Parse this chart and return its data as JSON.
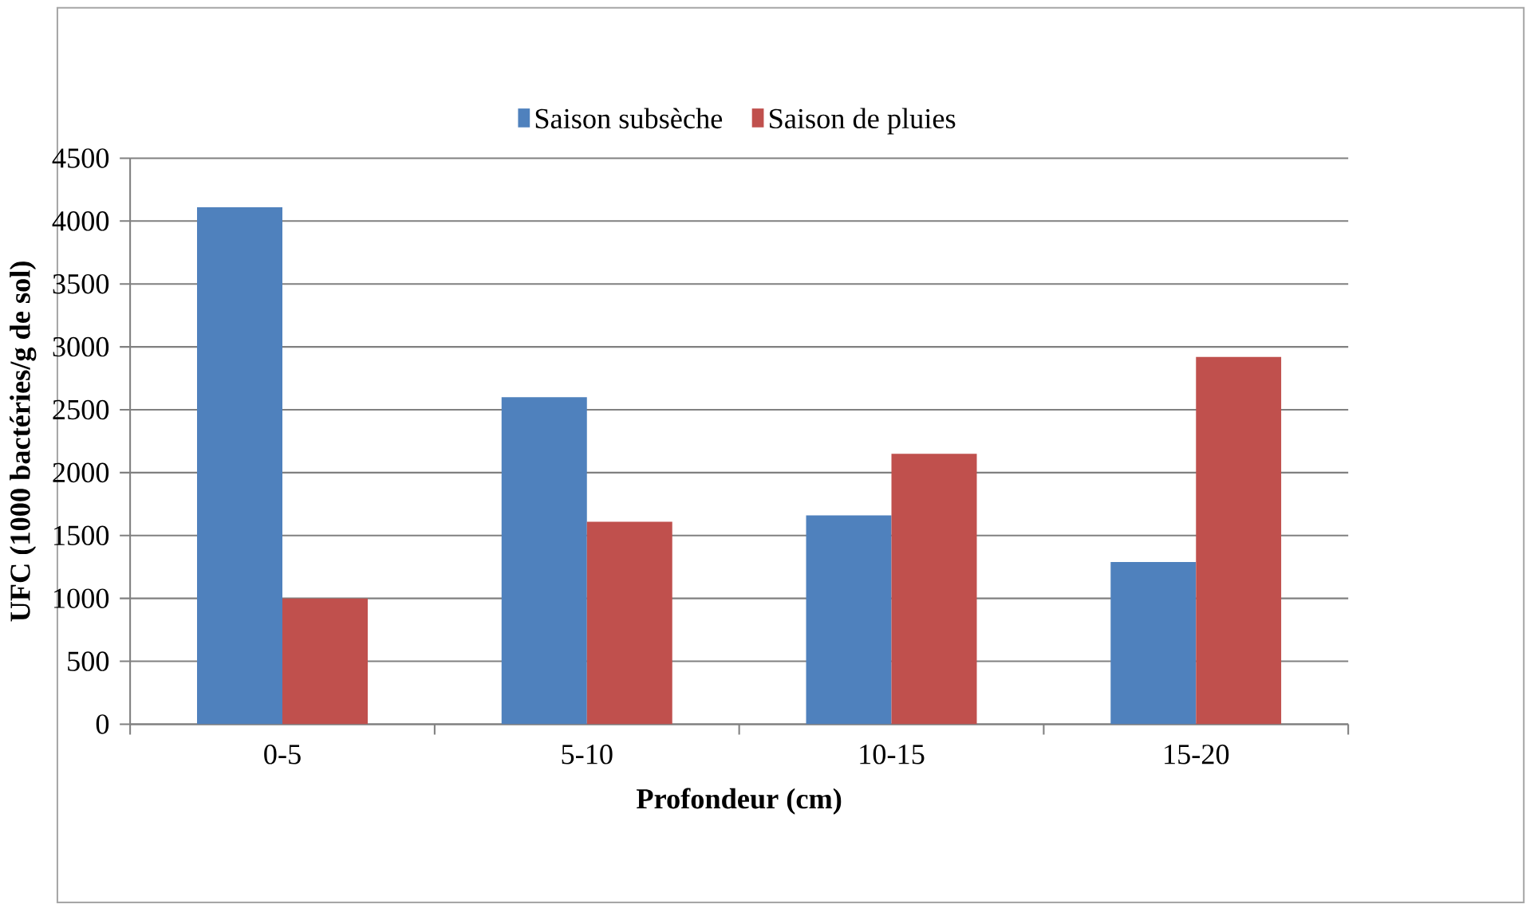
{
  "chart_data": {
    "type": "bar",
    "xlabel": "Profondeur (cm)",
    "ylabel": "UFC (1000 bactéries/g de sol)",
    "categories": [
      "0-5",
      "5-10",
      "10-15",
      "15-20"
    ],
    "series": [
      {
        "name": "Saison subsèche",
        "color": "#4f81bd",
        "values": [
          4110,
          2600,
          1660,
          1290
        ]
      },
      {
        "name": "Saison de pluies",
        "color": "#c0504d",
        "values": [
          1000,
          1610,
          2150,
          2920
        ]
      }
    ],
    "ylim": [
      0,
      4500
    ],
    "yticks": [
      0,
      500,
      1000,
      1500,
      2000,
      2500,
      3000,
      3500,
      4000,
      4500
    ],
    "grid": "y",
    "legend": "top"
  }
}
